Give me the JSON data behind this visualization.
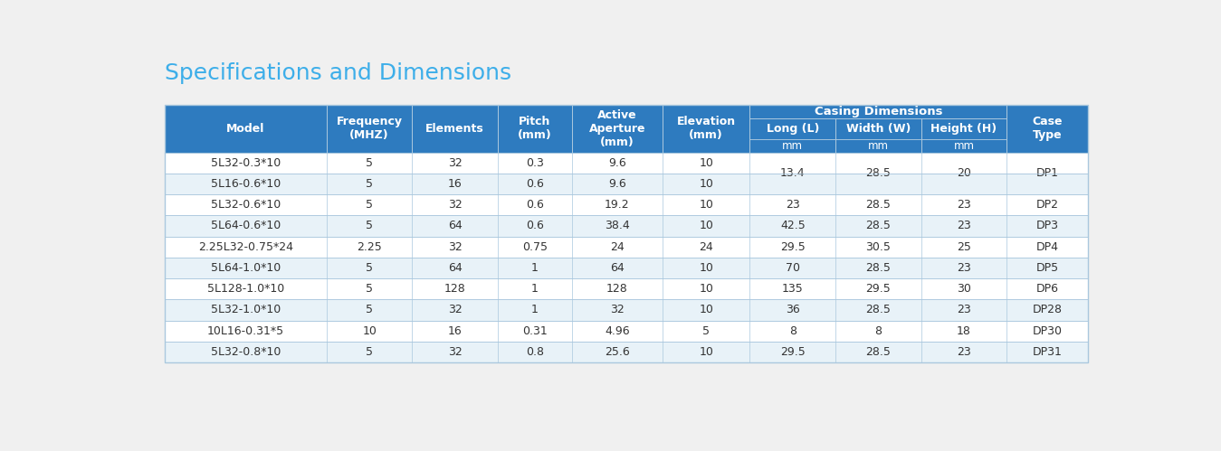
{
  "title": "Specifications and Dimensions",
  "title_color": "#3daee9",
  "title_fontsize": 18,
  "bg_color": "#f0f0f0",
  "header_bg": "#2e7bbf",
  "header_text": "#ffffff",
  "row_odd": "#ffffff",
  "row_even": "#e8f2f8",
  "border_color": "#aac8de",
  "text_color": "#333333",
  "casing_label": "Casing Dimensions",
  "col_widths_rel": [
    1.7,
    0.9,
    0.9,
    0.78,
    0.95,
    0.92,
    0.9,
    0.9,
    0.9,
    0.85
  ],
  "col_headers_top": [
    "Model",
    "Frequency\n(MHZ)",
    "Elements",
    "Pitch\n(mm)",
    "Active\nAperture\n(mm)",
    "Elevation\n(mm)",
    "",
    "",
    "",
    "Case\nType"
  ],
  "col_headers_mid": [
    "",
    "",
    "",
    "",
    "",
    "",
    "Long (L)",
    "Width (W)",
    "Height (H)",
    ""
  ],
  "col_headers_bot": [
    "",
    "",
    "",
    "",
    "",
    "",
    "mm",
    "mm",
    "mm",
    ""
  ],
  "rows": [
    [
      "5L32-0.3*10",
      "5",
      "32",
      "0.3",
      "9.6",
      "10",
      "13.4",
      "28.5",
      "20",
      "DP1"
    ],
    [
      "5L16-0.6*10",
      "5",
      "16",
      "0.6",
      "9.6",
      "10",
      "",
      "",
      "",
      ""
    ],
    [
      "5L32-0.6*10",
      "5",
      "32",
      "0.6",
      "19.2",
      "10",
      "23",
      "28.5",
      "23",
      "DP2"
    ],
    [
      "5L64-0.6*10",
      "5",
      "64",
      "0.6",
      "38.4",
      "10",
      "42.5",
      "28.5",
      "23",
      "DP3"
    ],
    [
      "2.25L32-0.75*24",
      "2.25",
      "32",
      "0.75",
      "24",
      "24",
      "29.5",
      "30.5",
      "25",
      "DP4"
    ],
    [
      "5L64-1.0*10",
      "5",
      "64",
      "1",
      "64",
      "10",
      "70",
      "28.5",
      "23",
      "DP5"
    ],
    [
      "5L128-1.0*10",
      "5",
      "128",
      "1",
      "128",
      "10",
      "135",
      "29.5",
      "30",
      "DP6"
    ],
    [
      "5L32-1.0*10",
      "5",
      "32",
      "1",
      "32",
      "10",
      "36",
      "28.5",
      "23",
      "DP28"
    ],
    [
      "10L16-0.31*5",
      "10",
      "16",
      "0.31",
      "4.96",
      "5",
      "8",
      "8",
      "18",
      "DP30"
    ],
    [
      "5L32-0.8*10",
      "5",
      "32",
      "0.8",
      "25.6",
      "10",
      "29.5",
      "28.5",
      "23",
      "DP31"
    ]
  ],
  "font_size": 9.0,
  "header_font_size": 9.0
}
